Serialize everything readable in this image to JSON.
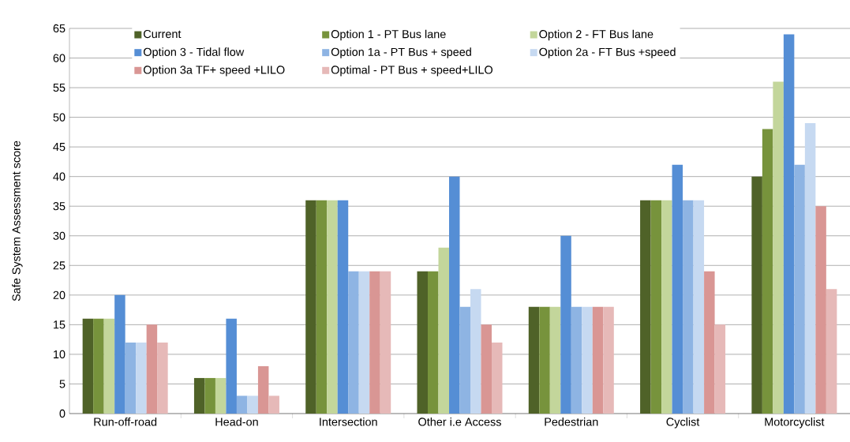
{
  "chart_data": {
    "type": "bar",
    "ylabel": "Safe System Assessment score",
    "categories": [
      "Run-off-road",
      "Head-on",
      "Intersection",
      "Other i.e Access",
      "Pedestrian",
      "Cyclist",
      "Motorcyclist"
    ],
    "series": [
      {
        "name": "Current",
        "color": "#4f6228",
        "values": [
          16,
          6,
          36,
          24,
          18,
          36,
          40
        ]
      },
      {
        "name": "Option 1 - PT Bus lane",
        "color": "#77933c",
        "values": [
          16,
          6,
          36,
          24,
          18,
          36,
          48
        ]
      },
      {
        "name": "Option 2 - FT Bus lane",
        "color": "#c3d69b",
        "values": [
          16,
          6,
          36,
          28,
          18,
          36,
          56
        ]
      },
      {
        "name": "Option 3 - Tidal flow",
        "color": "#558ed5",
        "values": [
          20,
          16,
          36,
          40,
          30,
          42,
          64
        ]
      },
      {
        "name": "Option 1a - PT Bus + speed",
        "color": "#8eb4e3",
        "values": [
          12,
          3,
          24,
          18,
          18,
          36,
          42
        ]
      },
      {
        "name": "Option 2a - FT Bus +speed",
        "color": "#c6d9f1",
        "values": [
          12,
          3,
          24,
          21,
          18,
          36,
          49
        ]
      },
      {
        "name": "Option 3a TF+ speed +LILO",
        "color": "#d99694",
        "values": [
          15,
          8,
          24,
          15,
          18,
          24,
          35
        ]
      },
      {
        "name": "Optimal - PT Bus + speed+LILO",
        "color": "#e6b9b8",
        "values": [
          12,
          3,
          24,
          12,
          18,
          15,
          21
        ]
      }
    ],
    "ylim": [
      0,
      65
    ],
    "yticks": [
      0,
      5,
      10,
      15,
      20,
      25,
      30,
      35,
      40,
      45,
      50,
      55,
      60,
      65
    ],
    "grid": "y",
    "legend": "top"
  }
}
